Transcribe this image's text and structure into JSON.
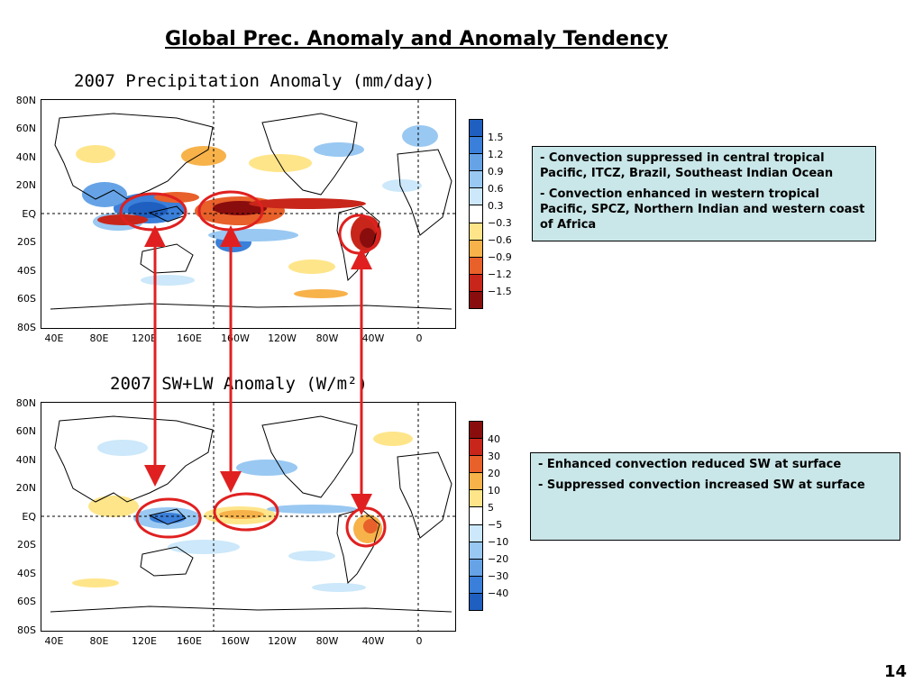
{
  "slide": {
    "title": "Global Prec. Anomaly and Anomaly Tendency",
    "page_number": "14"
  },
  "precip_map": {
    "title": "2007 Precipitation Anomaly (mm/day)",
    "lat_labels": [
      "80N",
      "60N",
      "40N",
      "20N",
      "EQ",
      "20S",
      "40S",
      "60S",
      "80S"
    ],
    "lon_labels": [
      "40E",
      "80E",
      "120E",
      "160E",
      "160W",
      "120W",
      "80W",
      "40W",
      "0"
    ],
    "colorbar": {
      "labels": [
        "1.5",
        "1.2",
        "0.9",
        "0.6",
        "0.3",
        "−0.3",
        "−0.6",
        "−0.9",
        "−1.2",
        "−1.5"
      ],
      "colors": [
        "#1f5fbf",
        "#3a7fd9",
        "#66a3e6",
        "#99c8f2",
        "#cce8fa",
        "#ffffff",
        "#ffe58a",
        "#f7b24a",
        "#e8602a",
        "#c8261a",
        "#8a0d0d"
      ]
    },
    "note_lines": [
      "-  Convection suppressed in central tropical Pacific, ITCZ, Brazil, Southeast Indian Ocean",
      "-  Convection enhanced in western tropical Pacific, SPCZ, Northern Indian and western coast of  Africa"
    ]
  },
  "radiation_map": {
    "title": "2007 SW+LW Anomaly (W/m²)",
    "lat_labels": [
      "80N",
      "60N",
      "40N",
      "20N",
      "EQ",
      "20S",
      "40S",
      "60S",
      "80S"
    ],
    "lon_labels": [
      "40E",
      "80E",
      "120E",
      "160E",
      "160W",
      "120W",
      "80W",
      "40W",
      "0"
    ],
    "colorbar": {
      "labels": [
        "40",
        "30",
        "20",
        "10",
        "5",
        "−5",
        "−10",
        "−20",
        "−30",
        "−40"
      ],
      "colors": [
        "#8a0d0d",
        "#c8261a",
        "#e8602a",
        "#f7b24a",
        "#ffe58a",
        "#ffffff",
        "#cce8fa",
        "#99c8f2",
        "#66a3e6",
        "#3a7fd9",
        "#1f5fbf"
      ]
    },
    "note_lines": [
      "-  Enhanced convection reduced SW at surface",
      "-  Suppressed convection increased SW at surface"
    ]
  },
  "colors": {
    "highlight": "#e02020",
    "note_background": "#c9e6e8"
  }
}
